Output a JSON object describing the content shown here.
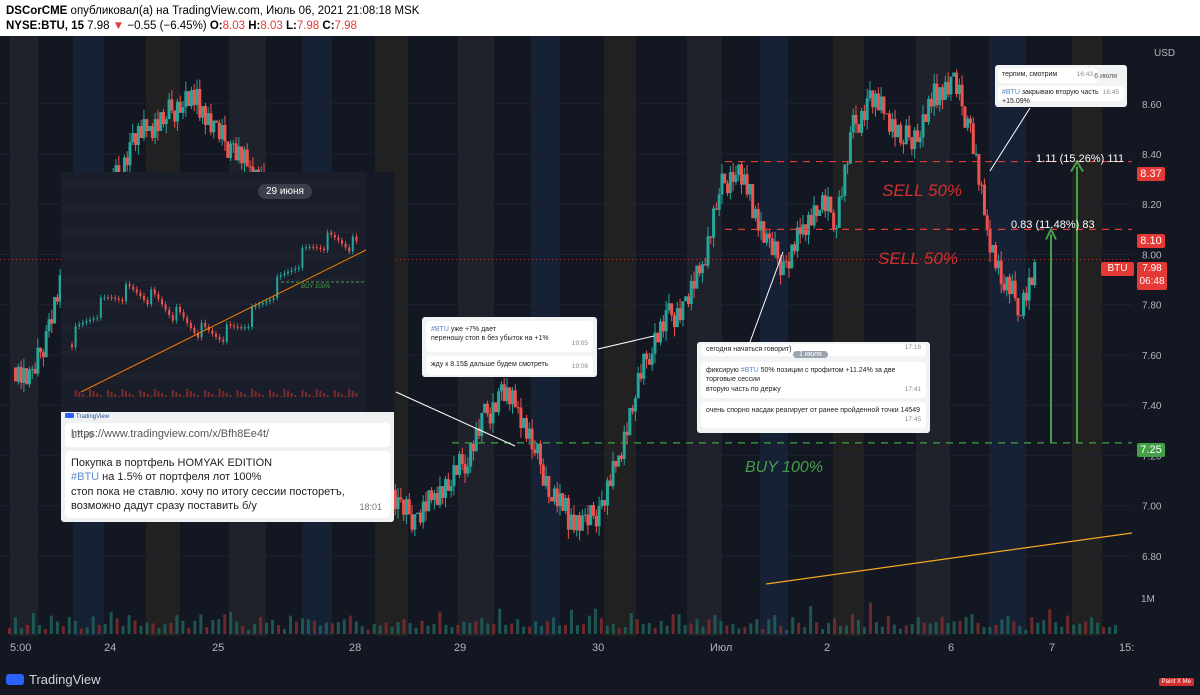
{
  "header": {
    "author": "DSCorCME",
    "published": "опубликовал(а) на TradingView.com, Июль 06, 2021 21:08:18 MSK",
    "symbol": "NYSE:BTU, 15",
    "last": "7.98",
    "arrow": "▼",
    "change": "−0.55 (−6.45%)",
    "o_label": "O:",
    "o": "8.03",
    "h_label": "H:",
    "h": "8.03",
    "l_label": "L:",
    "l": "7.98",
    "c_label": "C:",
    "c": "7.98"
  },
  "chart_data": {
    "type": "candlestick",
    "currency": "USD",
    "y_ticks": [
      "8.60",
      "8.40",
      "8.20",
      "8.00",
      "7.80",
      "7.60",
      "7.40",
      "7.20",
      "7.00",
      "6.80"
    ],
    "ylim": [
      6.72,
      8.83
    ],
    "x_ticks": [
      "5:00",
      "24",
      "25",
      "28",
      "29",
      "30",
      "Июл",
      "2",
      "6",
      "7",
      "15:"
    ],
    "volume_label": "1M",
    "price_levels": [
      {
        "label": "8.37",
        "value": 8.37,
        "color": "#e53935"
      },
      {
        "label": "8.10",
        "value": 8.1,
        "color": "#e53935"
      },
      {
        "label": "7.25",
        "value": 7.25,
        "color": "#43a047"
      }
    ],
    "last_price": {
      "symbol": "BTU",
      "value": "7.98",
      "countdown": "06:48"
    },
    "annotations": {
      "sell1": "SELL 50%",
      "sell2": "SELL 50%",
      "buy": "BUY 100%",
      "measure1": "0.83 (11.48%) 83",
      "measure2": "1.11 (15.26%) 111"
    },
    "price_path": [
      7.55,
      7.5,
      7.72,
      7.95,
      8.05,
      8.15,
      8.3,
      8.45,
      8.5,
      8.55,
      8.62,
      8.6,
      8.48,
      8.42,
      8.35,
      8.28,
      8.15,
      8.0,
      7.9,
      7.7,
      7.5,
      7.3,
      7.1,
      6.98,
      6.95,
      7.05,
      7.1,
      7.2,
      7.35,
      7.45,
      7.38,
      7.22,
      7.05,
      6.96,
      6.92,
      7.0,
      7.2,
      7.45,
      7.65,
      7.75,
      7.8,
      7.95,
      8.25,
      8.35,
      8.2,
      8.02,
      7.95,
      8.12,
      8.2,
      8.15,
      8.5,
      8.62,
      8.55,
      8.45,
      8.5,
      8.65,
      8.68,
      8.5,
      8.1,
      7.88,
      7.8,
      7.95
    ],
    "volume_path": [
      0.3,
      0.5,
      0.2,
      0.4,
      0.6,
      0.3,
      0.2,
      0.5,
      0.4,
      0.3,
      0.8,
      0.4,
      0.2,
      0.3,
      0.5,
      0.3,
      0.4,
      0.6,
      0.5,
      0.3,
      0.9,
      0.4,
      0.3,
      0.5,
      0.3,
      0.2,
      0.4,
      0.3,
      0.6,
      0.5,
      0.3,
      0.4,
      0.7,
      0.3,
      0.4,
      0.5,
      0.8,
      0.6,
      0.4,
      0.3,
      0.2,
      0.3,
      0.6,
      0.5,
      0.4,
      0.3,
      0.2,
      0.5,
      0.4,
      0.6,
      0.7,
      0.4,
      0.3,
      0.5,
      0.3,
      0.4,
      0.6,
      0.5,
      0.4,
      0.3,
      0.2,
      0.3
    ],
    "colors": {
      "up": "#26a69a",
      "down": "#ef5350",
      "grid": "#1e2230"
    }
  },
  "notes": {
    "n1": {
      "l1": "терпим, смотрим",
      "t1": "16:43",
      "l2a": "#BTU",
      "l2b": " закрываю вторую часть +15.09%",
      "t2": "16:45",
      "date": "6 июля"
    },
    "n2": {
      "l1a": "#BTU",
      "l1b": " уже +7% дает",
      "l2": "переношу стоп в без убыток на +1%",
      "t1": "19:05",
      "l3": "жду к 8.15$ дальше будем смотреть",
      "t2": "19:06"
    },
    "n3": {
      "l0": "сегодня начаться говорит)",
      "t0": "17:18",
      "date": "1 июля",
      "l1a": "фиксирую ",
      "l1b": "#BTU",
      "l1c": " 50% позиции с профитом +11.24% за две торговые сессии",
      "l2": "вторую часть по держу",
      "t1": "17:41",
      "l3": "очень спорно насдак реагирует от ранее пройденной точки 14549",
      "t2": "17:45"
    },
    "big": {
      "date": "29 июня",
      "buy": "BUY 100%",
      "tv": "TradingView",
      "url": "https://www.tradingview.com/x/Bfh8Ee4t/",
      "t_url": "17:59",
      "l1": "Покупка в портфель HOMYAK EDITION",
      "l2a": "#BTU",
      "l2b": " на 1.5% от портфеля лот 100%",
      "l3": "стоп пока не ставлю. хочу по итогу сессии посторетъ, возможно дадут сразу поставить б/у",
      "t": "18:01"
    }
  },
  "footer": {
    "brand": "TradingView",
    "paint": "Paint X Me"
  }
}
